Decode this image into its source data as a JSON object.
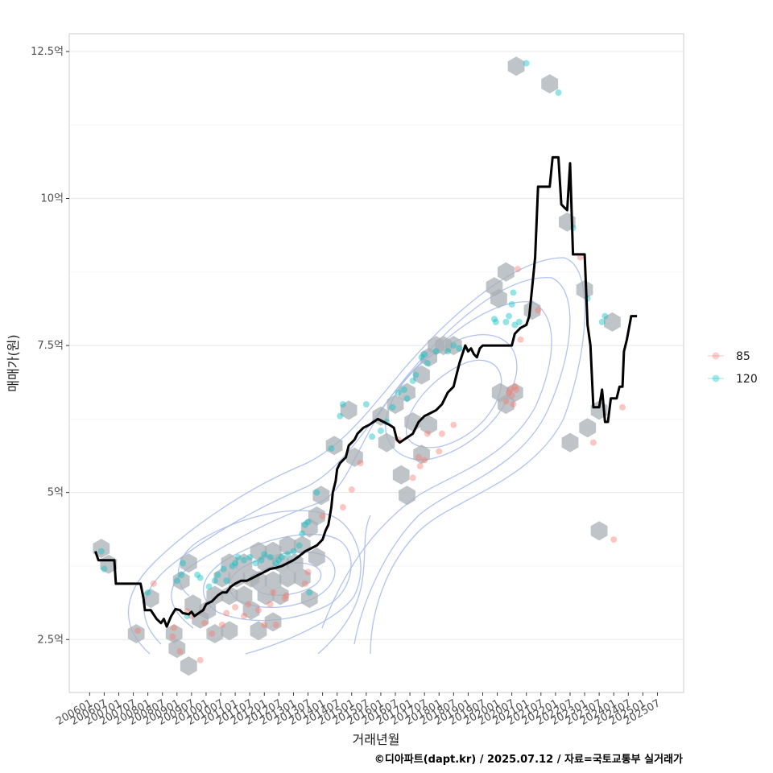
{
  "chart_data": {
    "type": "scatter",
    "xlabel": "거래년월",
    "ylabel": "매매가(원)",
    "caption": "©디아파트(dapt.kr) / 2025.07.12 / 자료=국토교통부 실거래가",
    "x_tick_labels": [
      "200601",
      "200607",
      "200701",
      "200707",
      "200801",
      "200807",
      "200901",
      "200907",
      "201001",
      "201007",
      "201101",
      "201107",
      "201201",
      "201207",
      "201301",
      "201307",
      "201401",
      "201407",
      "201501",
      "201507",
      "201601",
      "201607",
      "201701",
      "201707",
      "201801",
      "201807",
      "201901",
      "201907",
      "202001",
      "202007",
      "202101",
      "202107",
      "202201",
      "202207",
      "202301",
      "202307",
      "202401",
      "202407",
      "202501",
      "202507"
    ],
    "y_ticks": [
      2.5,
      5,
      7.5,
      10,
      12.5
    ],
    "y_tick_labels": [
      "2.5억",
      "5억",
      "7.5억",
      "10억",
      "12.5억"
    ],
    "xlim": [
      2005.3,
      2026.4
    ],
    "ylim": [
      1.6,
      12.8
    ],
    "grid": true,
    "legend_position": "right",
    "colors": {
      "s85": "#F8766D",
      "s120": "#00BFC4",
      "trend": "#000000",
      "hex": "#a9b0b6",
      "contour": "#9ab0e8",
      "grid": "#ebebeb",
      "panel_border": "#cccccc"
    },
    "series": [
      {
        "name": "85",
        "color": "#F8766D",
        "points": [
          [
            2007.65,
            2.65
          ],
          [
            2008.2,
            3.45
          ],
          [
            2008.85,
            2.55
          ],
          [
            2008.9,
            2.7
          ],
          [
            2009.1,
            2.3
          ],
          [
            2009.35,
            2.98
          ],
          [
            2009.5,
            2.9
          ],
          [
            2009.8,
            2.15
          ],
          [
            2009.95,
            2.78
          ],
          [
            2010.2,
            2.6
          ],
          [
            2010.55,
            2.75
          ],
          [
            2010.7,
            2.95
          ],
          [
            2011.0,
            3.05
          ],
          [
            2011.3,
            2.9
          ],
          [
            2011.45,
            3.1
          ],
          [
            2011.8,
            3.0
          ],
          [
            2012.0,
            2.75
          ],
          [
            2012.2,
            3.1
          ],
          [
            2012.3,
            3.3
          ],
          [
            2012.4,
            2.75
          ],
          [
            2012.7,
            3.2
          ],
          [
            2012.75,
            3.25
          ],
          [
            2013.4,
            3.45
          ],
          [
            2013.5,
            3.65
          ],
          [
            2014.0,
            4.6
          ],
          [
            2014.7,
            4.75
          ],
          [
            2015.0,
            5.05
          ],
          [
            2015.3,
            5.5
          ],
          [
            2016.6,
            5.9
          ],
          [
            2017.1,
            5.25
          ],
          [
            2017.3,
            5.6
          ],
          [
            2017.35,
            5.45
          ],
          [
            2017.5,
            5.55
          ],
          [
            2017.6,
            6.0
          ],
          [
            2018.0,
            5.7
          ],
          [
            2018.1,
            6.0
          ],
          [
            2018.5,
            6.15
          ],
          [
            2020.3,
            6.55
          ],
          [
            2020.4,
            6.7
          ],
          [
            2020.45,
            6.75
          ],
          [
            2020.5,
            6.65
          ],
          [
            2020.55,
            6.5
          ],
          [
            2020.6,
            6.8
          ],
          [
            2020.65,
            6.75
          ],
          [
            2020.7,
            8.8
          ],
          [
            2020.8,
            7.6
          ],
          [
            2021.4,
            8.1
          ],
          [
            2022.85,
            9.0
          ],
          [
            2023.3,
            5.85
          ],
          [
            2024.0,
            4.2
          ],
          [
            2024.3,
            6.45
          ]
        ]
      },
      {
        "name": "120",
        "color": "#00BFC4",
        "points": [
          [
            2006.4,
            4.0
          ],
          [
            2006.5,
            3.7
          ],
          [
            2008.0,
            3.3
          ],
          [
            2009.0,
            3.5
          ],
          [
            2009.15,
            3.6
          ],
          [
            2009.2,
            3.8
          ],
          [
            2009.35,
            2.9
          ],
          [
            2009.7,
            3.6
          ],
          [
            2009.8,
            3.55
          ],
          [
            2010.1,
            3.4
          ],
          [
            2010.3,
            3.5
          ],
          [
            2010.4,
            3.6
          ],
          [
            2010.6,
            3.7
          ],
          [
            2010.7,
            3.5
          ],
          [
            2010.9,
            3.75
          ],
          [
            2011.0,
            3.8
          ],
          [
            2011.1,
            3.9
          ],
          [
            2011.3,
            3.85
          ],
          [
            2011.5,
            3.9
          ],
          [
            2011.7,
            3.8
          ],
          [
            2011.9,
            3.85
          ],
          [
            2012.0,
            3.95
          ],
          [
            2012.2,
            3.9
          ],
          [
            2012.4,
            3.8
          ],
          [
            2012.5,
            3.85
          ],
          [
            2012.6,
            3.9
          ],
          [
            2012.8,
            3.95
          ],
          [
            2013.0,
            4.0
          ],
          [
            2013.2,
            4.1
          ],
          [
            2013.3,
            4.3
          ],
          [
            2013.4,
            4.45
          ],
          [
            2013.5,
            4.5
          ],
          [
            2013.55,
            3.3
          ],
          [
            2013.8,
            5.0
          ],
          [
            2014.3,
            5.75
          ],
          [
            2014.6,
            6.3
          ],
          [
            2014.7,
            6.5
          ],
          [
            2015.5,
            6.5
          ],
          [
            2015.7,
            5.95
          ],
          [
            2016.0,
            6.05
          ],
          [
            2016.2,
            6.2
          ],
          [
            2016.4,
            6.45
          ],
          [
            2016.6,
            6.7
          ],
          [
            2016.8,
            6.75
          ],
          [
            2016.9,
            6.6
          ],
          [
            2017.1,
            6.9
          ],
          [
            2017.2,
            7.0
          ],
          [
            2017.4,
            7.3
          ],
          [
            2017.5,
            7.35
          ],
          [
            2017.6,
            7.2
          ],
          [
            2017.9,
            7.4
          ],
          [
            2018.3,
            7.4
          ],
          [
            2018.5,
            7.5
          ],
          [
            2018.7,
            7.45
          ],
          [
            2019.9,
            7.95
          ],
          [
            2019.95,
            7.9
          ],
          [
            2020.3,
            7.9
          ],
          [
            2020.4,
            8.0
          ],
          [
            2020.5,
            8.2
          ],
          [
            2020.55,
            8.4
          ],
          [
            2020.6,
            7.85
          ],
          [
            2020.75,
            7.9
          ],
          [
            2021.0,
            12.3
          ],
          [
            2022.1,
            11.8
          ],
          [
            2022.6,
            9.5
          ],
          [
            2023.1,
            8.3
          ],
          [
            2023.6,
            7.9
          ],
          [
            2023.7,
            8.0
          ]
        ]
      }
    ],
    "trend_line": [
      [
        2006.2,
        4.0
      ],
      [
        2006.3,
        3.85
      ],
      [
        2006.6,
        3.85
      ],
      [
        2006.85,
        3.85
      ],
      [
        2006.9,
        3.45
      ],
      [
        2007.2,
        3.45
      ],
      [
        2007.5,
        3.45
      ],
      [
        2007.75,
        3.45
      ],
      [
        2007.85,
        3.2
      ],
      [
        2007.9,
        3.0
      ],
      [
        2008.1,
        3.0
      ],
      [
        2008.3,
        2.85
      ],
      [
        2008.45,
        2.78
      ],
      [
        2008.55,
        2.85
      ],
      [
        2008.65,
        2.72
      ],
      [
        2008.8,
        2.9
      ],
      [
        2008.95,
        3.02
      ],
      [
        2009.1,
        3.0
      ],
      [
        2009.2,
        2.95
      ],
      [
        2009.4,
        2.93
      ],
      [
        2009.5,
        2.97
      ],
      [
        2009.6,
        2.9
      ],
      [
        2009.75,
        2.95
      ],
      [
        2009.9,
        3.0
      ],
      [
        2010.0,
        3.1
      ],
      [
        2010.2,
        3.15
      ],
      [
        2010.4,
        3.25
      ],
      [
        2010.55,
        3.3
      ],
      [
        2010.7,
        3.3
      ],
      [
        2010.85,
        3.4
      ],
      [
        2011.0,
        3.45
      ],
      [
        2011.2,
        3.5
      ],
      [
        2011.4,
        3.5
      ],
      [
        2011.6,
        3.55
      ],
      [
        2011.8,
        3.6
      ],
      [
        2012.0,
        3.65
      ],
      [
        2012.2,
        3.7
      ],
      [
        2012.4,
        3.72
      ],
      [
        2012.6,
        3.75
      ],
      [
        2012.8,
        3.8
      ],
      [
        2013.0,
        3.85
      ],
      [
        2013.2,
        3.92
      ],
      [
        2013.4,
        4.0
      ],
      [
        2013.6,
        4.05
      ],
      [
        2013.8,
        4.1
      ],
      [
        2014.0,
        4.2
      ],
      [
        2014.1,
        4.35
      ],
      [
        2014.2,
        4.45
      ],
      [
        2014.3,
        4.75
      ],
      [
        2014.35,
        5.0
      ],
      [
        2014.45,
        5.2
      ],
      [
        2014.5,
        5.4
      ],
      [
        2014.6,
        5.5
      ],
      [
        2014.8,
        5.6
      ],
      [
        2014.9,
        5.8
      ],
      [
        2015.1,
        5.9
      ],
      [
        2015.2,
        6.0
      ],
      [
        2015.4,
        6.1
      ],
      [
        2015.6,
        6.15
      ],
      [
        2015.75,
        6.2
      ],
      [
        2015.9,
        6.25
      ],
      [
        2016.1,
        6.2
      ],
      [
        2016.3,
        6.15
      ],
      [
        2016.45,
        6.1
      ],
      [
        2016.55,
        5.9
      ],
      [
        2016.65,
        5.85
      ],
      [
        2016.8,
        5.9
      ],
      [
        2016.95,
        5.95
      ],
      [
        2017.1,
        6.0
      ],
      [
        2017.3,
        6.2
      ],
      [
        2017.5,
        6.3
      ],
      [
        2017.7,
        6.35
      ],
      [
        2017.9,
        6.4
      ],
      [
        2018.1,
        6.5
      ],
      [
        2018.3,
        6.7
      ],
      [
        2018.5,
        6.8
      ],
      [
        2018.6,
        7.0
      ],
      [
        2018.7,
        7.2
      ],
      [
        2018.8,
        7.35
      ],
      [
        2018.9,
        7.5
      ],
      [
        2019.0,
        7.4
      ],
      [
        2019.1,
        7.45
      ],
      [
        2019.2,
        7.35
      ],
      [
        2019.3,
        7.3
      ],
      [
        2019.4,
        7.45
      ],
      [
        2019.5,
        7.5
      ],
      [
        2019.7,
        7.5
      ],
      [
        2019.9,
        7.5
      ],
      [
        2020.1,
        7.5
      ],
      [
        2020.3,
        7.5
      ],
      [
        2020.5,
        7.5
      ],
      [
        2020.6,
        7.7
      ],
      [
        2020.8,
        7.8
      ],
      [
        2021.0,
        7.85
      ],
      [
        2021.1,
        8.0
      ],
      [
        2021.2,
        8.5
      ],
      [
        2021.3,
        9.0
      ],
      [
        2021.4,
        10.2
      ],
      [
        2021.6,
        10.2
      ],
      [
        2021.8,
        10.2
      ],
      [
        2021.9,
        10.7
      ],
      [
        2022.0,
        10.7
      ],
      [
        2022.1,
        10.7
      ],
      [
        2022.2,
        9.9
      ],
      [
        2022.3,
        9.85
      ],
      [
        2022.4,
        9.8
      ],
      [
        2022.5,
        10.6
      ],
      [
        2022.6,
        9.05
      ],
      [
        2022.8,
        9.05
      ],
      [
        2023.0,
        9.05
      ],
      [
        2023.1,
        7.85
      ],
      [
        2023.2,
        7.5
      ],
      [
        2023.3,
        6.45
      ],
      [
        2023.5,
        6.45
      ],
      [
        2023.6,
        6.75
      ],
      [
        2023.7,
        6.2
      ],
      [
        2023.8,
        6.2
      ],
      [
        2023.9,
        6.6
      ],
      [
        2024.1,
        6.6
      ],
      [
        2024.2,
        6.8
      ],
      [
        2024.3,
        6.8
      ],
      [
        2024.35,
        7.4
      ],
      [
        2024.45,
        7.6
      ],
      [
        2024.6,
        8.0
      ],
      [
        2024.8,
        8.0
      ]
    ],
    "hexbins": [
      [
        2006.4,
        4.05
      ],
      [
        2006.65,
        3.78
      ],
      [
        2007.6,
        2.6
      ],
      [
        2008.1,
        3.2
      ],
      [
        2008.9,
        2.6
      ],
      [
        2009.0,
        2.35
      ],
      [
        2009.15,
        3.5
      ],
      [
        2009.4,
        3.8
      ],
      [
        2009.4,
        2.05
      ],
      [
        2009.55,
        3.1
      ],
      [
        2009.8,
        2.85
      ],
      [
        2010.05,
        3.0
      ],
      [
        2010.3,
        3.25
      ],
      [
        2010.3,
        2.6
      ],
      [
        2010.55,
        3.55
      ],
      [
        2010.8,
        3.8
      ],
      [
        2010.8,
        3.25
      ],
      [
        2010.8,
        2.65
      ],
      [
        2011.05,
        3.55
      ],
      [
        2011.3,
        3.8
      ],
      [
        2011.3,
        3.25
      ],
      [
        2011.55,
        3.55
      ],
      [
        2011.55,
        3.0
      ],
      [
        2011.8,
        4.0
      ],
      [
        2011.8,
        3.5
      ],
      [
        2011.8,
        2.65
      ],
      [
        2012.05,
        3.8
      ],
      [
        2012.05,
        3.25
      ],
      [
        2012.3,
        4.0
      ],
      [
        2012.3,
        3.5
      ],
      [
        2012.3,
        2.8
      ],
      [
        2012.55,
        3.8
      ],
      [
        2012.55,
        3.25
      ],
      [
        2012.8,
        4.1
      ],
      [
        2012.8,
        3.55
      ],
      [
        2013.05,
        3.8
      ],
      [
        2013.3,
        4.1
      ],
      [
        2013.3,
        3.55
      ],
      [
        2013.55,
        4.4
      ],
      [
        2013.55,
        3.2
      ],
      [
        2013.8,
        4.6
      ],
      [
        2013.8,
        3.9
      ],
      [
        2013.95,
        4.95
      ],
      [
        2014.4,
        5.8
      ],
      [
        2014.9,
        6.4
      ],
      [
        2015.1,
        5.6
      ],
      [
        2016.0,
        6.3
      ],
      [
        2016.2,
        5.85
      ],
      [
        2016.5,
        6.5
      ],
      [
        2016.7,
        5.3
      ],
      [
        2016.9,
        4.95
      ],
      [
        2016.9,
        6.7
      ],
      [
        2017.1,
        6.2
      ],
      [
        2017.4,
        5.65
      ],
      [
        2017.4,
        7.0
      ],
      [
        2017.65,
        7.3
      ],
      [
        2017.65,
        6.15
      ],
      [
        2017.9,
        7.5
      ],
      [
        2018.15,
        7.5
      ],
      [
        2018.5,
        7.5
      ],
      [
        2019.9,
        8.5
      ],
      [
        2020.05,
        8.3
      ],
      [
        2020.1,
        6.7
      ],
      [
        2020.3,
        8.75
      ],
      [
        2020.3,
        6.5
      ],
      [
        2020.6,
        6.7
      ],
      [
        2020.65,
        12.25
      ],
      [
        2021.2,
        8.1
      ],
      [
        2021.8,
        11.95
      ],
      [
        2022.4,
        9.6
      ],
      [
        2022.5,
        5.85
      ],
      [
        2023.0,
        8.45
      ],
      [
        2023.1,
        6.1
      ],
      [
        2023.5,
        6.4
      ],
      [
        2023.5,
        4.35
      ],
      [
        2023.95,
        7.9
      ]
    ]
  },
  "legend": {
    "items": [
      {
        "label": "85",
        "color": "#F8766D"
      },
      {
        "label": "120",
        "color": "#00BFC4"
      }
    ]
  }
}
